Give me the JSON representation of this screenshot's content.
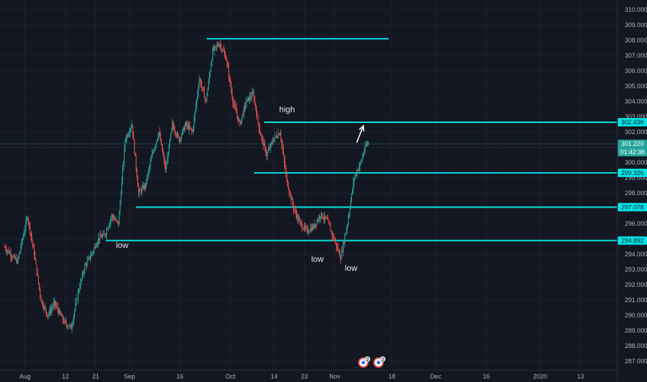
{
  "chart_data": {
    "type": "candlestick",
    "x_axis": {
      "ticks": [
        {
          "label": "Aug",
          "day": 0
        },
        {
          "label": "12",
          "day": 12
        },
        {
          "label": "21",
          "day": 21
        },
        {
          "label": "Sep",
          "day": 31
        },
        {
          "label": "16",
          "day": 46
        },
        {
          "label": "Oct",
          "day": 61
        },
        {
          "label": "14",
          "day": 74
        },
        {
          "label": "23",
          "day": 83
        },
        {
          "label": "Nov",
          "day": 92
        },
        {
          "label": "18",
          "day": 109
        },
        {
          "label": "Dec",
          "day": 122
        },
        {
          "label": "16",
          "day": 137
        },
        {
          "label": "2020",
          "day": 153
        },
        {
          "label": "13",
          "day": 165
        }
      ]
    },
    "y_axis": {
      "min": 287,
      "max": 310,
      "ticks": [
        310,
        309,
        308,
        307,
        306,
        305,
        304,
        303,
        302,
        301,
        300,
        299,
        298,
        297,
        296,
        295,
        294,
        293,
        292,
        291,
        290,
        289,
        288,
        287
      ],
      "tick_labels": [
        "310.000",
        "309.000",
        "308.000",
        "307.000",
        "306.000",
        "305.000",
        "304.000",
        "303.000",
        "302.000",
        "301.000",
        "300.000",
        "299.000",
        "298.000",
        "297.000",
        "296.000",
        "295.000",
        "294.000",
        "293.000",
        "292.000",
        "291.000",
        "290.000",
        "289.000",
        "288.000",
        "287.000"
      ]
    },
    "price_anchors": [
      [
        -6,
        294.5
      ],
      [
        -2,
        293.5
      ],
      [
        1,
        296.5
      ],
      [
        3,
        294.0
      ],
      [
        5,
        291.0
      ],
      [
        7,
        290.0
      ],
      [
        9,
        290.8
      ],
      [
        12,
        289.5
      ],
      [
        14,
        289.2
      ],
      [
        16,
        291.5
      ],
      [
        18,
        293.2
      ],
      [
        20,
        294.0
      ],
      [
        22,
        295.0
      ],
      [
        24,
        295.3
      ],
      [
        26,
        296.5
      ],
      [
        28,
        296.0
      ],
      [
        30,
        301.5
      ],
      [
        32,
        302.5
      ],
      [
        34,
        298.0
      ],
      [
        36,
        298.5
      ],
      [
        38,
        300.5
      ],
      [
        40,
        302.0
      ],
      [
        42,
        299.5
      ],
      [
        44,
        302.5
      ],
      [
        46,
        301.5
      ],
      [
        48,
        302.5
      ],
      [
        50,
        302.0
      ],
      [
        52,
        305.5
      ],
      [
        54,
        304.0
      ],
      [
        56,
        307.3
      ],
      [
        58,
        307.8
      ],
      [
        60,
        306.8
      ],
      [
        62,
        304.0
      ],
      [
        64,
        302.5
      ],
      [
        66,
        304.0
      ],
      [
        68,
        304.5
      ],
      [
        70,
        302.0
      ],
      [
        72,
        300.5
      ],
      [
        74,
        301.5
      ],
      [
        76,
        302.0
      ],
      [
        78,
        298.8
      ],
      [
        80,
        297.0
      ],
      [
        82,
        296.0
      ],
      [
        84,
        295.5
      ],
      [
        86,
        295.8
      ],
      [
        88,
        296.6
      ],
      [
        90,
        296.2
      ],
      [
        92,
        295.0
      ],
      [
        94,
        293.8
      ],
      [
        96,
        296.0
      ],
      [
        98,
        299.0
      ],
      [
        100,
        300.0
      ],
      [
        101,
        300.8
      ],
      [
        102,
        301.3
      ]
    ],
    "horizontal_levels": [
      {
        "price": 308.1,
        "from_day": 54,
        "to_day": 108,
        "label": ""
      },
      {
        "price": 302.636,
        "from_day": 71,
        "to_day": 171,
        "label": "302.636"
      },
      {
        "price": 299.326,
        "from_day": 68,
        "to_day": 171,
        "label": "299.326"
      },
      {
        "price": 297.078,
        "from_day": 33,
        "to_day": 171,
        "label": "297.078"
      },
      {
        "price": 294.892,
        "from_day": 24,
        "to_day": 171,
        "label": "294.892"
      }
    ],
    "current_price": {
      "price": 301.22,
      "label": "301.220",
      "countdown": "01:42:38"
    },
    "annotations": [
      {
        "text": "high",
        "day": 75.5,
        "price": 303.3
      },
      {
        "text": "low",
        "day": 27,
        "price": 294.4
      },
      {
        "text": "low",
        "day": 85,
        "price": 293.5
      },
      {
        "text": "low",
        "day": 95,
        "price": 292.9
      }
    ],
    "arrow": {
      "from": [
        98.5,
        301.3
      ],
      "to": [
        100.5,
        302.4
      ]
    },
    "event_badges": [
      {
        "day": 100.5,
        "count": "2"
      },
      {
        "day": 105,
        "count": "2"
      }
    ],
    "colors": {
      "background": "#131722",
      "grid": "#1e2230",
      "up": "#26a69a",
      "down": "#ef5350",
      "level": "#00e5e5",
      "axis_text": "#b2b5be",
      "annotation": "#e6e6e6"
    }
  }
}
